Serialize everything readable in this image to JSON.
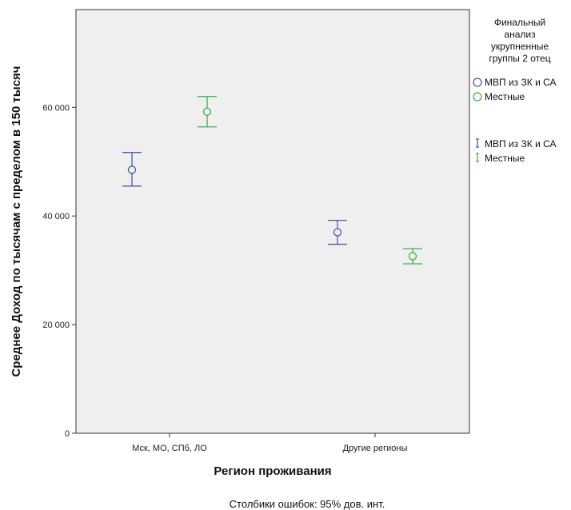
{
  "chart_data": {
    "type": "scatter",
    "xlabel": "Регион проживания",
    "ylabel": "Среднее Доход по тысячам с пределом в 150 тысяч",
    "categories": [
      "Мск, МО, СПб, ЛО",
      "Другие регионы"
    ],
    "ylim": [
      0,
      78000
    ],
    "yticks": [
      {
        "value": 0,
        "label": "0"
      },
      {
        "value": 20000,
        "label": "20 000"
      },
      {
        "value": 40000,
        "label": "40 000"
      },
      {
        "value": 60000,
        "label": "60 000"
      }
    ],
    "grid": false,
    "legend": {
      "title": [
        "Финальный",
        "анализ",
        "укрупненные",
        "группы 2 отец"
      ],
      "placement": "right",
      "marker_entries": [
        "МВП из ЗК и СА",
        "Местные"
      ],
      "errorbar_entries": [
        "МВП из ЗК и СА",
        "Местные"
      ]
    },
    "series": [
      {
        "name": "МВП из ЗК и СА",
        "color": "#4d5aa6",
        "means": [
          48500,
          37000
        ],
        "lower": [
          45500,
          34800
        ],
        "upper": [
          51700,
          39200
        ]
      },
      {
        "name": "Местные",
        "color": "#3fb04a",
        "means": [
          59200,
          32600
        ],
        "lower": [
          56400,
          31200
        ],
        "upper": [
          62000,
          34000
        ]
      }
    ],
    "footnote": "Столбики ошибок: 95% дов. инт."
  }
}
